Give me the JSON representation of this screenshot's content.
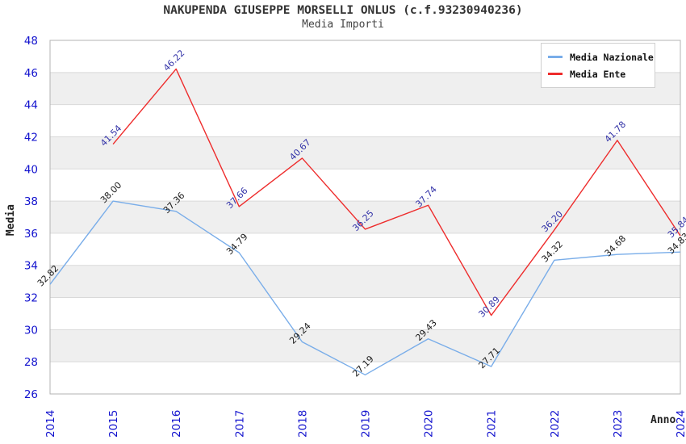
{
  "colors": {
    "tick_label": "#1313CE",
    "stripe": "#EFEFEF",
    "grid": "#D9D9D9",
    "plot_border": "#B3B3B3"
  },
  "chart_data": {
    "type": "line",
    "title": "NAKUPENDA GIUSEPPE MORSELLI ONLUS (c.f.93230940236)",
    "subtitle": "Media Importi",
    "xlabel": "Anno",
    "ylabel": "Media",
    "x": [
      "2014",
      "2015",
      "2016",
      "2017",
      "2018",
      "2019",
      "2020",
      "2021",
      "2022",
      "2023",
      "2024"
    ],
    "ylim": [
      26,
      48
    ],
    "ytick_step": 2,
    "grid_style": "horizontal-stripes",
    "legend_position": "top-right",
    "series": [
      {
        "name": "Media Nazionale",
        "color": "#79ADE9",
        "label_color": "#1A1A1A",
        "values": [
          32.82,
          38.0,
          37.36,
          34.79,
          29.24,
          27.19,
          29.43,
          27.71,
          34.32,
          34.68,
          34.83
        ]
      },
      {
        "name": "Media Ente",
        "color": "#EE2C2C",
        "label_color": "#3333A8",
        "values": [
          null,
          41.54,
          46.22,
          37.66,
          40.67,
          36.25,
          37.74,
          30.89,
          36.2,
          41.78,
          35.84
        ]
      }
    ]
  }
}
